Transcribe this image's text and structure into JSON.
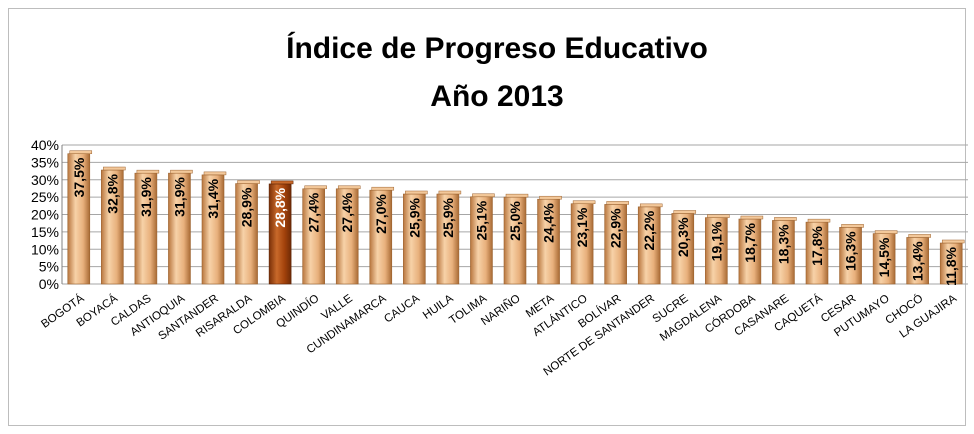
{
  "colors": {
    "bar": "#e8b07c",
    "bar_light": "#f7d2a8",
    "bar_dark": "#b8763e",
    "highlight": "#a3420b",
    "highlight_light": "#c8692a",
    "grid": "#a6a6a6"
  },
  "chart_data": {
    "type": "bar",
    "title": "Índice  de Progreso Educativo",
    "subtitle": "Año 2013",
    "xlabel": "",
    "ylabel": "",
    "ylim": [
      0,
      0.4
    ],
    "yticks": [
      "0%",
      "5%",
      "10%",
      "15%",
      "20%",
      "25%",
      "30%",
      "35%",
      "40%"
    ],
    "grid": true,
    "categories": [
      "BOGOTÁ",
      "BOYACÁ",
      "CALDAS",
      "ANTIOQUIA",
      "SANTANDER",
      "RISARALDA",
      "COLOMBIA",
      "QUINDÍO",
      "VALLE",
      "CUNDINAMARCA",
      "CAUCA",
      "HUILA",
      "TOLIMA",
      "NARIÑO",
      "META",
      "ATLÁNTICO",
      "BOLÍVAR",
      "NORTE DE SANTANDER",
      "SUCRE",
      "MAGDALENA",
      "CÓRDOBA",
      "CASANARE",
      "CAQUETÁ",
      "CESAR",
      "PUTUMAYO",
      "CHOCÓ",
      "LA GUAJIRA"
    ],
    "values": [
      0.375,
      0.328,
      0.319,
      0.319,
      0.314,
      0.289,
      0.288,
      0.274,
      0.274,
      0.27,
      0.259,
      0.259,
      0.251,
      0.25,
      0.244,
      0.231,
      0.229,
      0.222,
      0.203,
      0.191,
      0.187,
      0.183,
      0.178,
      0.163,
      0.145,
      0.134,
      0.118
    ],
    "data_labels": [
      "37,5%",
      "32,8%",
      "31,9%",
      "31,9%",
      "31,4%",
      "28,9%",
      "28,8%",
      "27,4%",
      "27,4%",
      "27,0%",
      "25,9%",
      "25,9%",
      "25,1%",
      "25,0%",
      "24,4%",
      "23,1%",
      "22,9%",
      "22,2%",
      "20,3%",
      "19,1%",
      "18,7%",
      "18,3%",
      "17,8%",
      "16,3%",
      "14,5%",
      "13,4%",
      "11,8%"
    ],
    "highlight_category": "COLOMBIA"
  }
}
